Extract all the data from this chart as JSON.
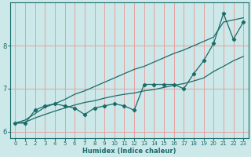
{
  "xlabel": "Humidex (Indice chaleur)",
  "bg_color": "#cce8e8",
  "grid_color": "#e8a0a0",
  "line_color": "#1a6b6b",
  "xlim": [
    -0.5,
    23.5
  ],
  "ylim": [
    5.85,
    9.0
  ],
  "yticks": [
    6,
    7,
    8
  ],
  "xticks": [
    0,
    1,
    2,
    3,
    4,
    5,
    6,
    7,
    8,
    9,
    10,
    11,
    12,
    13,
    14,
    15,
    16,
    17,
    18,
    19,
    20,
    21,
    22,
    23
  ],
  "data_x": [
    0,
    1,
    2,
    3,
    4,
    5,
    6,
    7,
    8,
    9,
    10,
    11,
    12,
    13,
    14,
    15,
    16,
    17,
    18,
    19,
    20,
    21,
    22,
    23
  ],
  "data_y": [
    6.2,
    6.2,
    6.5,
    6.6,
    6.65,
    6.6,
    6.55,
    6.4,
    6.55,
    6.6,
    6.65,
    6.6,
    6.5,
    7.1,
    7.1,
    7.1,
    7.1,
    7.0,
    7.35,
    7.65,
    8.05,
    8.75,
    8.15,
    8.55
  ],
  "upper_y": [
    6.2,
    6.27,
    6.42,
    6.57,
    6.65,
    6.75,
    6.87,
    6.95,
    7.05,
    7.15,
    7.25,
    7.35,
    7.45,
    7.52,
    7.62,
    7.72,
    7.82,
    7.9,
    8.0,
    8.1,
    8.2,
    8.55,
    8.6,
    8.65
  ],
  "lower_y": [
    6.2,
    6.22,
    6.32,
    6.4,
    6.48,
    6.55,
    6.62,
    6.68,
    6.72,
    6.78,
    6.83,
    6.87,
    6.9,
    6.95,
    6.98,
    7.03,
    7.08,
    7.12,
    7.18,
    7.25,
    7.4,
    7.52,
    7.65,
    7.75
  ]
}
